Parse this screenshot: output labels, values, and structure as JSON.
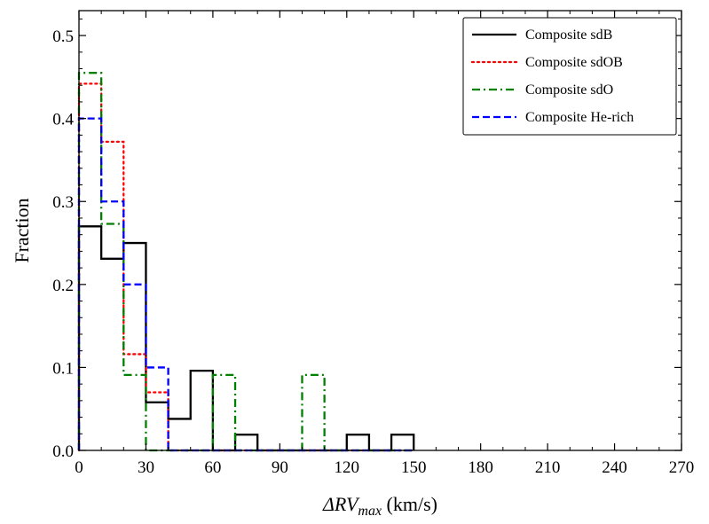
{
  "chart_data": {
    "type": "histogram",
    "title": "",
    "xlabel_prefix": "ΔRV",
    "xlabel_subscript": "max",
    "xlabel_unit": " (km/s)",
    "ylabel": "Fraction",
    "xlim": [
      0,
      270
    ],
    "ylim": [
      0,
      0.53
    ],
    "xticks": [
      0,
      30,
      60,
      90,
      120,
      150,
      180,
      210,
      240,
      270
    ],
    "xtick_labels": [
      "0",
      "30",
      "60",
      "90",
      "120",
      "150",
      "180",
      "210",
      "240",
      "270"
    ],
    "yticks": [
      0,
      0.1,
      0.2,
      0.3,
      0.4,
      0.5
    ],
    "ytick_labels": [
      "0.0",
      "0.1",
      "0.2",
      "0.3",
      "0.4",
      "0.5"
    ],
    "bin_edges": [
      0,
      10,
      20,
      30,
      40,
      50,
      60,
      70,
      80,
      90,
      100,
      110,
      120,
      130,
      140,
      150
    ],
    "legend_position": "top-right",
    "series": [
      {
        "name": "Composite sdB",
        "color": "#000000",
        "style": "solid",
        "values": [
          0.27,
          0.231,
          0.25,
          0.058,
          0.038,
          0.096,
          0,
          0.019,
          0,
          0,
          0,
          0,
          0.019,
          0,
          0.019
        ]
      },
      {
        "name": "Composite sdOB",
        "color": "#ff0000",
        "style": "dotted",
        "values": [
          0.442,
          0.372,
          0.116,
          0.07,
          0,
          0,
          0,
          0,
          0,
          0,
          0,
          0,
          0,
          0,
          0
        ]
      },
      {
        "name": "Composite sdO",
        "color": "#008000",
        "style": "dashdot",
        "values": [
          0.455,
          0.273,
          0.091,
          0,
          0,
          0,
          0.091,
          0,
          0,
          0,
          0.091,
          0,
          0,
          0,
          0
        ]
      },
      {
        "name": "Composite He-rich",
        "color": "#0000ff",
        "style": "dashed",
        "values": [
          0.4,
          0.3,
          0.2,
          0.1,
          0,
          0,
          0,
          0,
          0,
          0,
          0,
          0,
          0,
          0,
          0
        ]
      }
    ]
  }
}
